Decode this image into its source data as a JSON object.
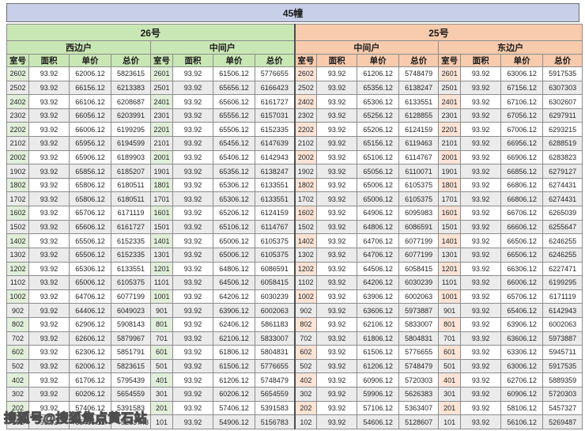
{
  "title": "45幢",
  "watermark": "搜狐号@搜狐焦点黄石站",
  "columns": [
    "室号",
    "面积",
    "单价",
    "总价"
  ],
  "buildings": {
    "b26": {
      "label": "26号",
      "sections": [
        "西边户",
        "中间户"
      ]
    },
    "b25": {
      "label": "25号",
      "sections": [
        "中间户",
        "东边户"
      ]
    }
  },
  "colors": {
    "title_bar": "#c7cfe9",
    "green_header": "#c9e7b5",
    "green_room": "#e2efda",
    "peach_header": "#f8cbad",
    "peach_room": "#fce4d6",
    "alt_row": "#ebebeb"
  },
  "rows": [
    [
      "2602",
      "93.92",
      "62006.12",
      "5823615",
      "2601",
      "93.92",
      "61506.12",
      "5776655",
      "2602",
      "93.92",
      "61206.12",
      "5748479",
      "2601",
      "93.92",
      "63006.12",
      "5917535"
    ],
    [
      "2502",
      "93.92",
      "66156.12",
      "6213383",
      "2501",
      "93.92",
      "65656.12",
      "6166423",
      "2502",
      "93.92",
      "65356.12",
      "6138247",
      "2501",
      "93.92",
      "67156.12",
      "6307303"
    ],
    [
      "2402",
      "93.92",
      "66106.12",
      "6208687",
      "2401",
      "93.92",
      "65606.12",
      "6161727",
      "2402",
      "93.92",
      "65306.12",
      "6133551",
      "2401",
      "93.92",
      "67106.12",
      "6302607"
    ],
    [
      "2302",
      "93.92",
      "66056.12",
      "6203991",
      "2301",
      "93.92",
      "65556.12",
      "6157031",
      "2302",
      "93.92",
      "65256.12",
      "6128855",
      "2301",
      "93.92",
      "67056.12",
      "6297911"
    ],
    [
      "2202",
      "93.92",
      "66006.12",
      "6199295",
      "2201",
      "93.92",
      "65506.12",
      "6152335",
      "2202",
      "93.92",
      "65206.12",
      "6124159",
      "2201",
      "93.92",
      "67006.12",
      "6293215"
    ],
    [
      "2102",
      "93.92",
      "65956.12",
      "6194599",
      "2101",
      "93.92",
      "65456.12",
      "6147639",
      "2102",
      "93.92",
      "65156.12",
      "6119463",
      "2101",
      "93.92",
      "66956.12",
      "6288519"
    ],
    [
      "2002",
      "93.92",
      "65906.12",
      "6189903",
      "2001",
      "93.92",
      "65406.12",
      "6142943",
      "2002",
      "93.92",
      "65106.12",
      "6114767",
      "2001",
      "93.92",
      "66906.12",
      "6283823"
    ],
    [
      "1902",
      "93.92",
      "65856.12",
      "6185207",
      "1901",
      "93.92",
      "65356.12",
      "6138247",
      "1902",
      "93.92",
      "65056.12",
      "6110071",
      "1901",
      "93.92",
      "66856.12",
      "6279127"
    ],
    [
      "1802",
      "93.92",
      "65806.12",
      "6180511",
      "1801",
      "93.92",
      "65306.12",
      "6133551",
      "1802",
      "93.92",
      "65006.12",
      "6105375",
      "1801",
      "93.92",
      "66806.12",
      "6274431"
    ],
    [
      "1702",
      "93.92",
      "65806.12",
      "6180511",
      "1701",
      "93.92",
      "65306.12",
      "6133551",
      "1702",
      "93.92",
      "65006.12",
      "6105375",
      "1701",
      "93.92",
      "66806.12",
      "6274431"
    ],
    [
      "1602",
      "93.92",
      "65706.12",
      "6171119",
      "1601",
      "93.92",
      "65206.12",
      "6124159",
      "1602",
      "93.92",
      "64906.12",
      "6095983",
      "1601",
      "93.92",
      "66706.12",
      "6265039"
    ],
    [
      "1502",
      "93.92",
      "65606.12",
      "6161727",
      "1501",
      "93.92",
      "65106.12",
      "6114767",
      "1502",
      "93.92",
      "64806.12",
      "6086591",
      "1501",
      "93.92",
      "66606.12",
      "6255647"
    ],
    [
      "1402",
      "93.92",
      "65506.12",
      "6152335",
      "1401",
      "93.92",
      "65006.12",
      "6105375",
      "1402",
      "93.92",
      "64706.12",
      "6077199",
      "1401",
      "93.92",
      "66506.12",
      "6246255"
    ],
    [
      "1302",
      "93.92",
      "65506.12",
      "6152335",
      "1301",
      "93.92",
      "65006.12",
      "6105375",
      "1302",
      "93.92",
      "64706.12",
      "6077199",
      "1301",
      "93.92",
      "66506.12",
      "6246255"
    ],
    [
      "1202",
      "93.92",
      "65306.12",
      "6133551",
      "1201",
      "93.92",
      "64806.12",
      "6086591",
      "1202",
      "93.92",
      "64506.12",
      "6058415",
      "1201",
      "93.92",
      "66306.12",
      "6227471"
    ],
    [
      "1102",
      "93.92",
      "65006.12",
      "6105375",
      "1101",
      "93.92",
      "64506.12",
      "6058415",
      "1102",
      "93.92",
      "64206.12",
      "6030239",
      "1101",
      "93.92",
      "66006.12",
      "6199295"
    ],
    [
      "1002",
      "93.92",
      "64706.12",
      "6077199",
      "1001",
      "93.92",
      "64206.12",
      "6030239",
      "1002",
      "93.92",
      "63906.12",
      "6002063",
      "1001",
      "93.92",
      "65706.12",
      "6171119"
    ],
    [
      "902",
      "93.92",
      "64406.12",
      "6049023",
      "901",
      "93.92",
      "63906.12",
      "6002063",
      "902",
      "93.92",
      "63606.12",
      "5973887",
      "901",
      "93.92",
      "65406.12",
      "6142943"
    ],
    [
      "802",
      "93.92",
      "62906.12",
      "5908143",
      "801",
      "93.92",
      "62406.12",
      "5861183",
      "802",
      "93.92",
      "62106.12",
      "5833007",
      "801",
      "93.92",
      "63906.12",
      "6002063"
    ],
    [
      "702",
      "93.92",
      "62606.12",
      "5879967",
      "701",
      "93.92",
      "62106.12",
      "5833007",
      "702",
      "93.92",
      "61806.12",
      "5804831",
      "701",
      "93.92",
      "63606.12",
      "5973887"
    ],
    [
      "602",
      "93.92",
      "62306.12",
      "5851791",
      "601",
      "93.92",
      "61806.12",
      "5804831",
      "602",
      "93.92",
      "61506.12",
      "5776655",
      "601",
      "93.92",
      "63306.12",
      "5945711"
    ],
    [
      "502",
      "93.92",
      "62006.12",
      "5823615",
      "501",
      "93.92",
      "61506.12",
      "5776655",
      "502",
      "93.92",
      "61206.12",
      "5748479",
      "501",
      "93.92",
      "63006.12",
      "5917535"
    ],
    [
      "402",
      "93.92",
      "61706.12",
      "5795439",
      "401",
      "93.92",
      "61206.12",
      "5748479",
      "402",
      "93.92",
      "60906.12",
      "5720303",
      "401",
      "93.92",
      "62706.12",
      "5889359"
    ],
    [
      "302",
      "93.92",
      "60206.12",
      "5654559",
      "301",
      "93.92",
      "60206.12",
      "5654559",
      "302",
      "93.92",
      "59906.12",
      "5626383",
      "301",
      "93.92",
      "60906.12",
      "5720303"
    ],
    [
      "202",
      "93.92",
      "57406.12",
      "5391583",
      "201",
      "93.92",
      "57406.12",
      "5391583",
      "202",
      "93.92",
      "57106.12",
      "5363407",
      "201",
      "93.92",
      "58106.12",
      "5457327"
    ],
    [
      "102",
      "93.92",
      "55406.12",
      "5203743",
      "101",
      "93.92",
      "54906.12",
      "5156783",
      "102",
      "93.92",
      "54606.12",
      "5128607",
      "101",
      "93.92",
      "56106.12",
      "5269487"
    ]
  ]
}
